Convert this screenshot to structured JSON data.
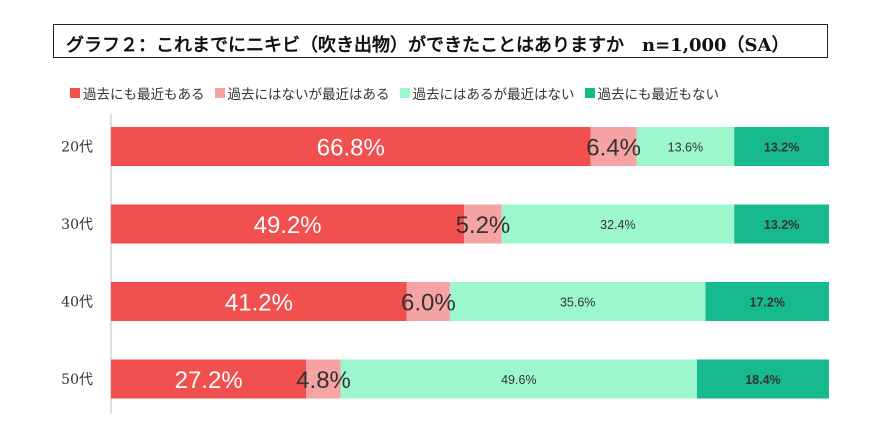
{
  "title": "グラフ２：これまでにニキビ（吹き出物）ができたことはありますか　n=1,000（SA）",
  "chart_data": {
    "type": "bar",
    "stacked": true,
    "orientation": "horizontal",
    "categories": [
      "20代",
      "30代",
      "40代",
      "50代"
    ],
    "series": [
      {
        "name": "過去にも最近もある",
        "values": [
          66.8,
          49.2,
          41.2,
          27.2
        ],
        "color": "#F24F4F"
      },
      {
        "name": "過去にはないが最近はある",
        "values": [
          6.4,
          5.2,
          6.0,
          4.8
        ],
        "color": "#F5A3A3"
      },
      {
        "name": "過去にはあるが最近はない",
        "values": [
          13.6,
          32.4,
          35.6,
          49.6
        ],
        "color": "#9CF7CF"
      },
      {
        "name": "過去にも最近もない",
        "values": [
          13.2,
          13.2,
          17.2,
          18.4
        ],
        "color": "#17BA8D"
      }
    ],
    "data_labels": [
      [
        "66.8%",
        "6.4%",
        "13.6%",
        "13.2%"
      ],
      [
        "49.2%",
        "5.2%",
        "32.4%",
        "13.2%"
      ],
      [
        "41.2%",
        "6.0%",
        "35.6%",
        "17.2%"
      ],
      [
        "27.2%",
        "4.8%",
        "49.6%",
        "18.4%"
      ]
    ],
    "xlim": [
      0,
      100
    ],
    "legend_position": "top"
  }
}
